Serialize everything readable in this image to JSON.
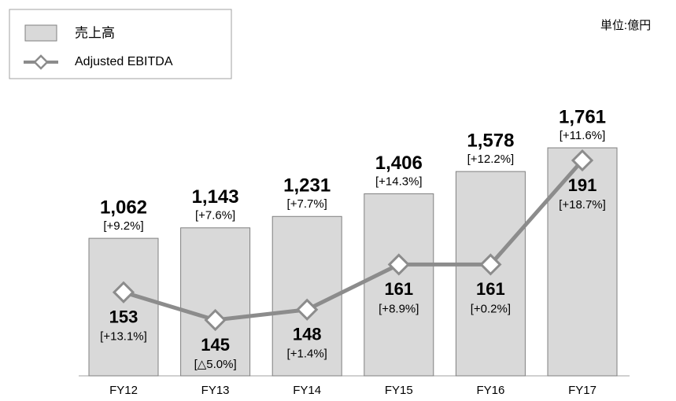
{
  "chart_data": {
    "type": "bar_line",
    "unit": "単位:億円",
    "categories": [
      "FY12",
      "FY13",
      "FY14",
      "FY15",
      "FY16",
      "FY17"
    ],
    "series": [
      {
        "name": "売上高",
        "type": "bar",
        "color": "#d9d9d9",
        "values": [
          1062,
          1143,
          1231,
          1406,
          1578,
          1761
        ],
        "value_labels": [
          "1,062",
          "1,143",
          "1,231",
          "1,406",
          "1,578",
          "1,761"
        ],
        "growth_labels": [
          "[+9.2%]",
          "[+7.6%]",
          "[+7.7%]",
          "[+14.3%]",
          "[+12.2%]",
          "[+11.6%]"
        ]
      },
      {
        "name": "Adjusted EBITDA",
        "type": "line",
        "axis": "y2",
        "color": "#8c8c8c",
        "values": [
          153,
          145,
          148,
          161,
          161,
          191
        ],
        "growth_labels": [
          "[+13.1%]",
          "[△5.0%]",
          "[+1.4%]",
          "[+8.9%]",
          "[+0.2%]",
          "[+18.7%]"
        ]
      }
    ]
  }
}
